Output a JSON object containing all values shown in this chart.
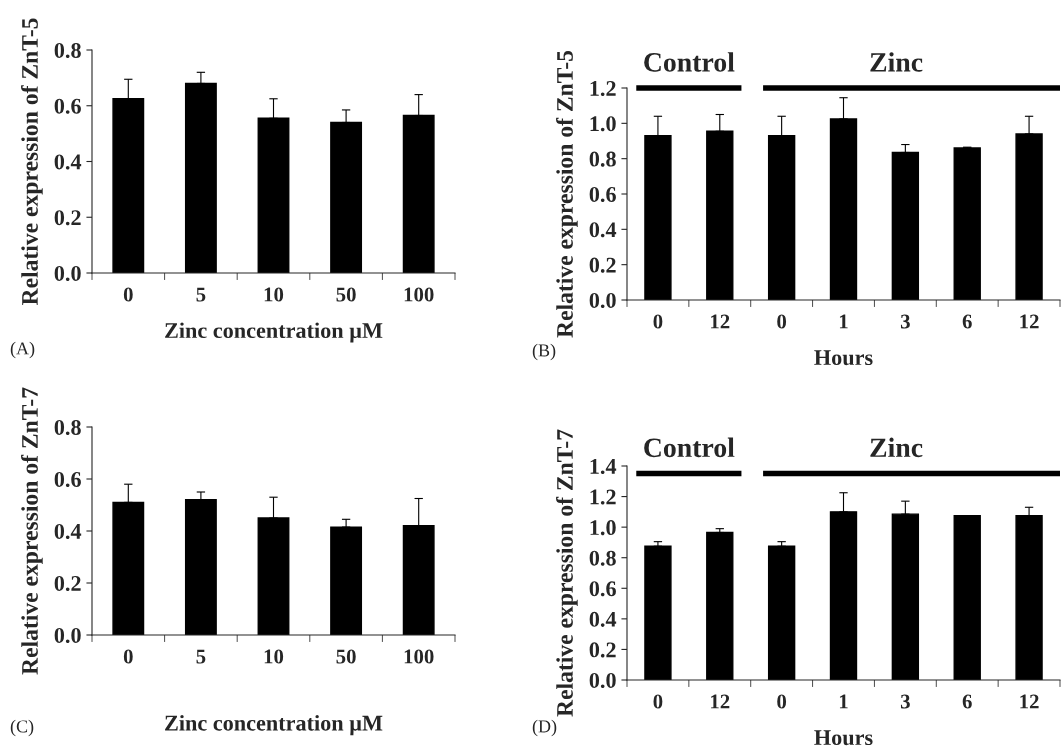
{
  "chart_data": [
    {
      "type": "bar",
      "categories": [
        "0",
        "5",
        "10",
        "50",
        "100"
      ],
      "values": [
        0.625,
        0.68,
        0.555,
        0.54,
        0.565
      ],
      "color": "#000000",
      "errors": [
        [
          0.625,
          0.695
        ],
        [
          0.68,
          0.72
        ],
        [
          0.555,
          0.625
        ],
        [
          0.54,
          0.585
        ],
        [
          0.565,
          0.64
        ]
      ],
      "ylim": [
        0,
        0.8
      ],
      "yticks": [
        {
          "value": 0,
          "label": "0.0"
        },
        {
          "value": 0.2,
          "label": "0.2"
        },
        {
          "value": 0.4,
          "label": "0.4"
        },
        {
          "value": 0.6,
          "label": "0.6"
        },
        {
          "value": 0.8,
          "label": "0.8"
        }
      ],
      "xlabel": "Zinc concentration µM",
      "ylabel": "Relative expression of ZnT-5",
      "annotations": [
        "(A)"
      ]
    },
    {
      "type": "bar",
      "categories": [
        "0",
        "12",
        "0",
        "1",
        "3",
        "6",
        "12"
      ],
      "values": [
        0.93,
        0.955,
        0.93,
        1.025,
        0.835,
        0.86,
        0.94
      ],
      "color": "#000000",
      "errors": [
        [
          0.93,
          1.04
        ],
        [
          0.955,
          1.05
        ],
        [
          0.93,
          1.04
        ],
        [
          1.025,
          1.145
        ],
        [
          0.835,
          0.88
        ],
        [
          0.86,
          0.865
        ],
        [
          0.94,
          1.04
        ]
      ],
      "ylim": [
        0,
        1.2
      ],
      "yticks": [
        {
          "value": 0,
          "label": "0.0"
        },
        {
          "value": 0.2,
          "label": "0.2"
        },
        {
          "value": 0.4,
          "label": "0.4"
        },
        {
          "value": 0.6,
          "label": "0.6"
        },
        {
          "value": 0.8,
          "label": "0.8"
        },
        {
          "value": 1.0,
          "label": "1.0"
        },
        {
          "value": 1.2,
          "label": "1.2"
        }
      ],
      "xlabel": "Hours",
      "ylabel": "Relative expression of ZnT-5",
      "annotations": [
        "Control",
        "Zinc",
        "(B)"
      ]
    },
    {
      "type": "bar",
      "categories": [
        "0",
        "5",
        "10",
        "50",
        "100"
      ],
      "values": [
        0.51,
        0.52,
        0.45,
        0.415,
        0.42
      ],
      "color": "#000000",
      "errors": [
        [
          0.51,
          0.58
        ],
        [
          0.52,
          0.55
        ],
        [
          0.45,
          0.53
        ],
        [
          0.415,
          0.445
        ],
        [
          0.42,
          0.525
        ]
      ],
      "ylim": [
        0,
        0.8
      ],
      "yticks": [
        {
          "value": 0,
          "label": "0.0"
        },
        {
          "value": 0.2,
          "label": "0.2"
        },
        {
          "value": 0.4,
          "label": "0.4"
        },
        {
          "value": 0.6,
          "label": "0.6"
        },
        {
          "value": 0.8,
          "label": "0.8"
        }
      ],
      "xlabel": "Zinc concentration µM",
      "ylabel": "Relative expression of ZnT-7",
      "annotations": [
        "(C)"
      ]
    },
    {
      "type": "bar",
      "categories": [
        "0",
        "12",
        "0",
        "1",
        "3",
        "6",
        "12"
      ],
      "values": [
        0.875,
        0.965,
        0.875,
        1.1,
        1.085,
        1.075,
        1.075
      ],
      "color": "#000000",
      "errors": [
        [
          0.875,
          0.905
        ],
        [
          0.965,
          0.99
        ],
        [
          0.875,
          0.905
        ],
        [
          1.1,
          1.225
        ],
        [
          1.085,
          1.17
        ],
        null,
        [
          1.075,
          1.13
        ]
      ],
      "ylim": [
        0,
        1.4
      ],
      "yticks": [
        {
          "value": 0,
          "label": "0.0"
        },
        {
          "value": 0.2,
          "label": "0.2"
        },
        {
          "value": 0.4,
          "label": "0.4"
        },
        {
          "value": 0.6,
          "label": "0.6"
        },
        {
          "value": 0.8,
          "label": "0.8"
        },
        {
          "value": 1.0,
          "label": "1.0"
        },
        {
          "value": 1.2,
          "label": "1.2"
        },
        {
          "value": 1.4,
          "label": "1.4"
        }
      ],
      "xlabel": "Hours",
      "ylabel": "Relative expression of ZnT-7",
      "annotations": [
        "Control",
        "Zinc",
        "(D)"
      ]
    }
  ]
}
